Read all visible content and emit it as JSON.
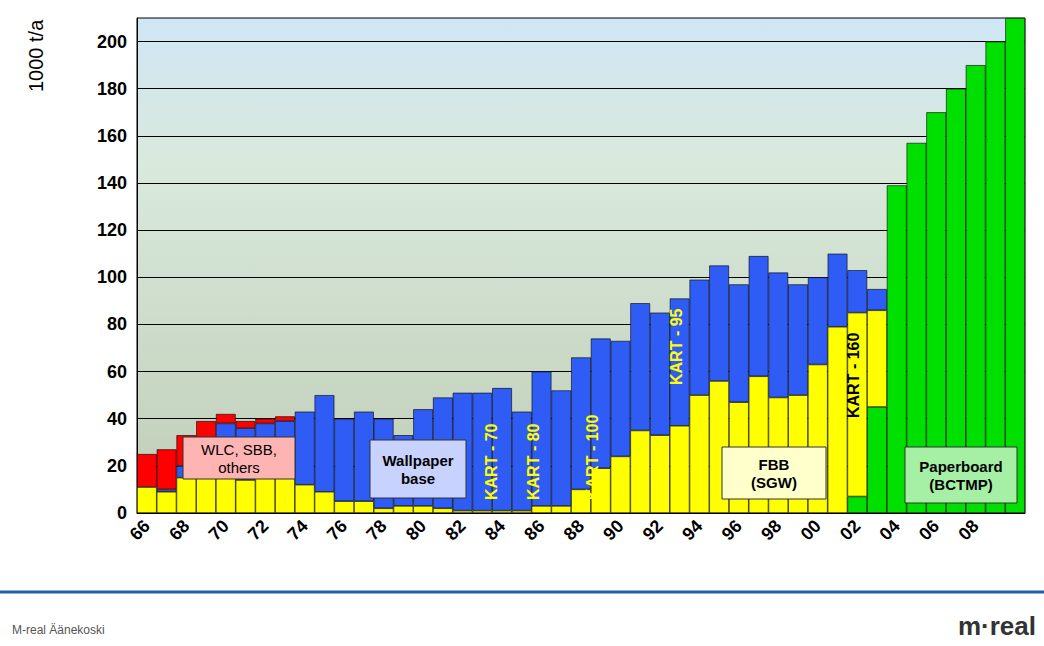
{
  "chart_data": {
    "type": "bar",
    "y_label": "1000 t/a",
    "categories": [
      "66",
      null,
      "68",
      null,
      "70",
      null,
      "72",
      null,
      "74",
      null,
      "76",
      null,
      "78",
      null,
      "80",
      null,
      "82",
      null,
      "84",
      null,
      "86",
      null,
      "88",
      null,
      "90",
      null,
      "92",
      null,
      "94",
      null,
      "96",
      null,
      "98",
      null,
      "00",
      null,
      "02",
      null,
      "04",
      null,
      "06",
      null,
      "08",
      null,
      null
    ],
    "series": [
      {
        "name": "Paperboard (BCTMP)",
        "color": "#00e000",
        "values": [
          null,
          null,
          null,
          null,
          null,
          null,
          null,
          null,
          null,
          null,
          null,
          null,
          null,
          null,
          null,
          null,
          null,
          null,
          null,
          null,
          null,
          null,
          null,
          null,
          null,
          null,
          null,
          null,
          null,
          null,
          null,
          null,
          null,
          null,
          null,
          null,
          7,
          45,
          139,
          157,
          170,
          180,
          190,
          200,
          210
        ]
      },
      {
        "name": "FBB (SGW)",
        "color": "#ffff00",
        "values": [
          11,
          9,
          15,
          16,
          16,
          14,
          15,
          15,
          12,
          9,
          5,
          5,
          2,
          3,
          3,
          2,
          1,
          1,
          1,
          1,
          3,
          3,
          10,
          19,
          24,
          35,
          33,
          37,
          50,
          56,
          47,
          58,
          49,
          50,
          63,
          79,
          78,
          41,
          null,
          null,
          null,
          null,
          null,
          null,
          null
        ]
      },
      {
        "name": "Wallpaper base",
        "color": "#2f5cf5",
        "values": [
          null,
          1,
          5,
          9,
          22,
          22,
          23,
          24,
          31,
          41,
          35,
          38,
          38,
          30,
          41,
          47,
          50,
          50,
          52,
          42,
          57,
          49,
          56,
          55,
          49,
          54,
          52,
          54,
          49,
          49,
          50,
          51,
          53,
          47,
          37,
          31,
          18,
          9,
          null,
          null,
          null,
          null,
          null,
          null,
          null
        ]
      },
      {
        "name": "WLC, SBB, others",
        "color": "#ff0000",
        "values": [
          14,
          17,
          13,
          14,
          4,
          3,
          2,
          2,
          null,
          null,
          null,
          null,
          null,
          null,
          null,
          null,
          null,
          null,
          null,
          null,
          null,
          null,
          null,
          null,
          null,
          null,
          null,
          null,
          null,
          null,
          null,
          null,
          null,
          null,
          null,
          null,
          null,
          null,
          null,
          null,
          null,
          null,
          null,
          null,
          null
        ]
      }
    ],
    "stacked": true,
    "ylim": [
      0,
      210
    ],
    "yticks": [
      0,
      20,
      40,
      60,
      80,
      100,
      120,
      140,
      160,
      180,
      200
    ],
    "grid": true,
    "annotations": [
      "KART - 70",
      "KART - 80",
      "KART - 100",
      "KART - 95",
      "KART - 160"
    ],
    "footer": "M-real Äänekoski",
    "logo": "m·real"
  }
}
